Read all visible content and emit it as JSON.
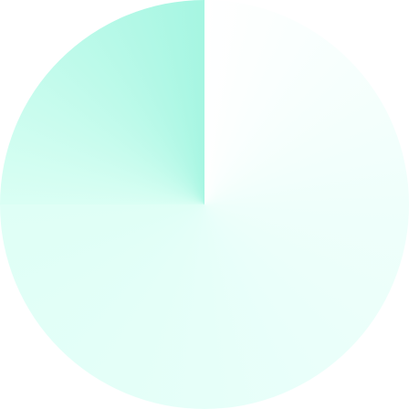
{
  "graphic": {
    "shape": "circle",
    "fill": "conic-gradient",
    "gradient_stops": [
      "#ffffff",
      "#effffb",
      "#e6fff9",
      "#dffff6",
      "#dafff4",
      "#a6f6e2"
    ]
  }
}
